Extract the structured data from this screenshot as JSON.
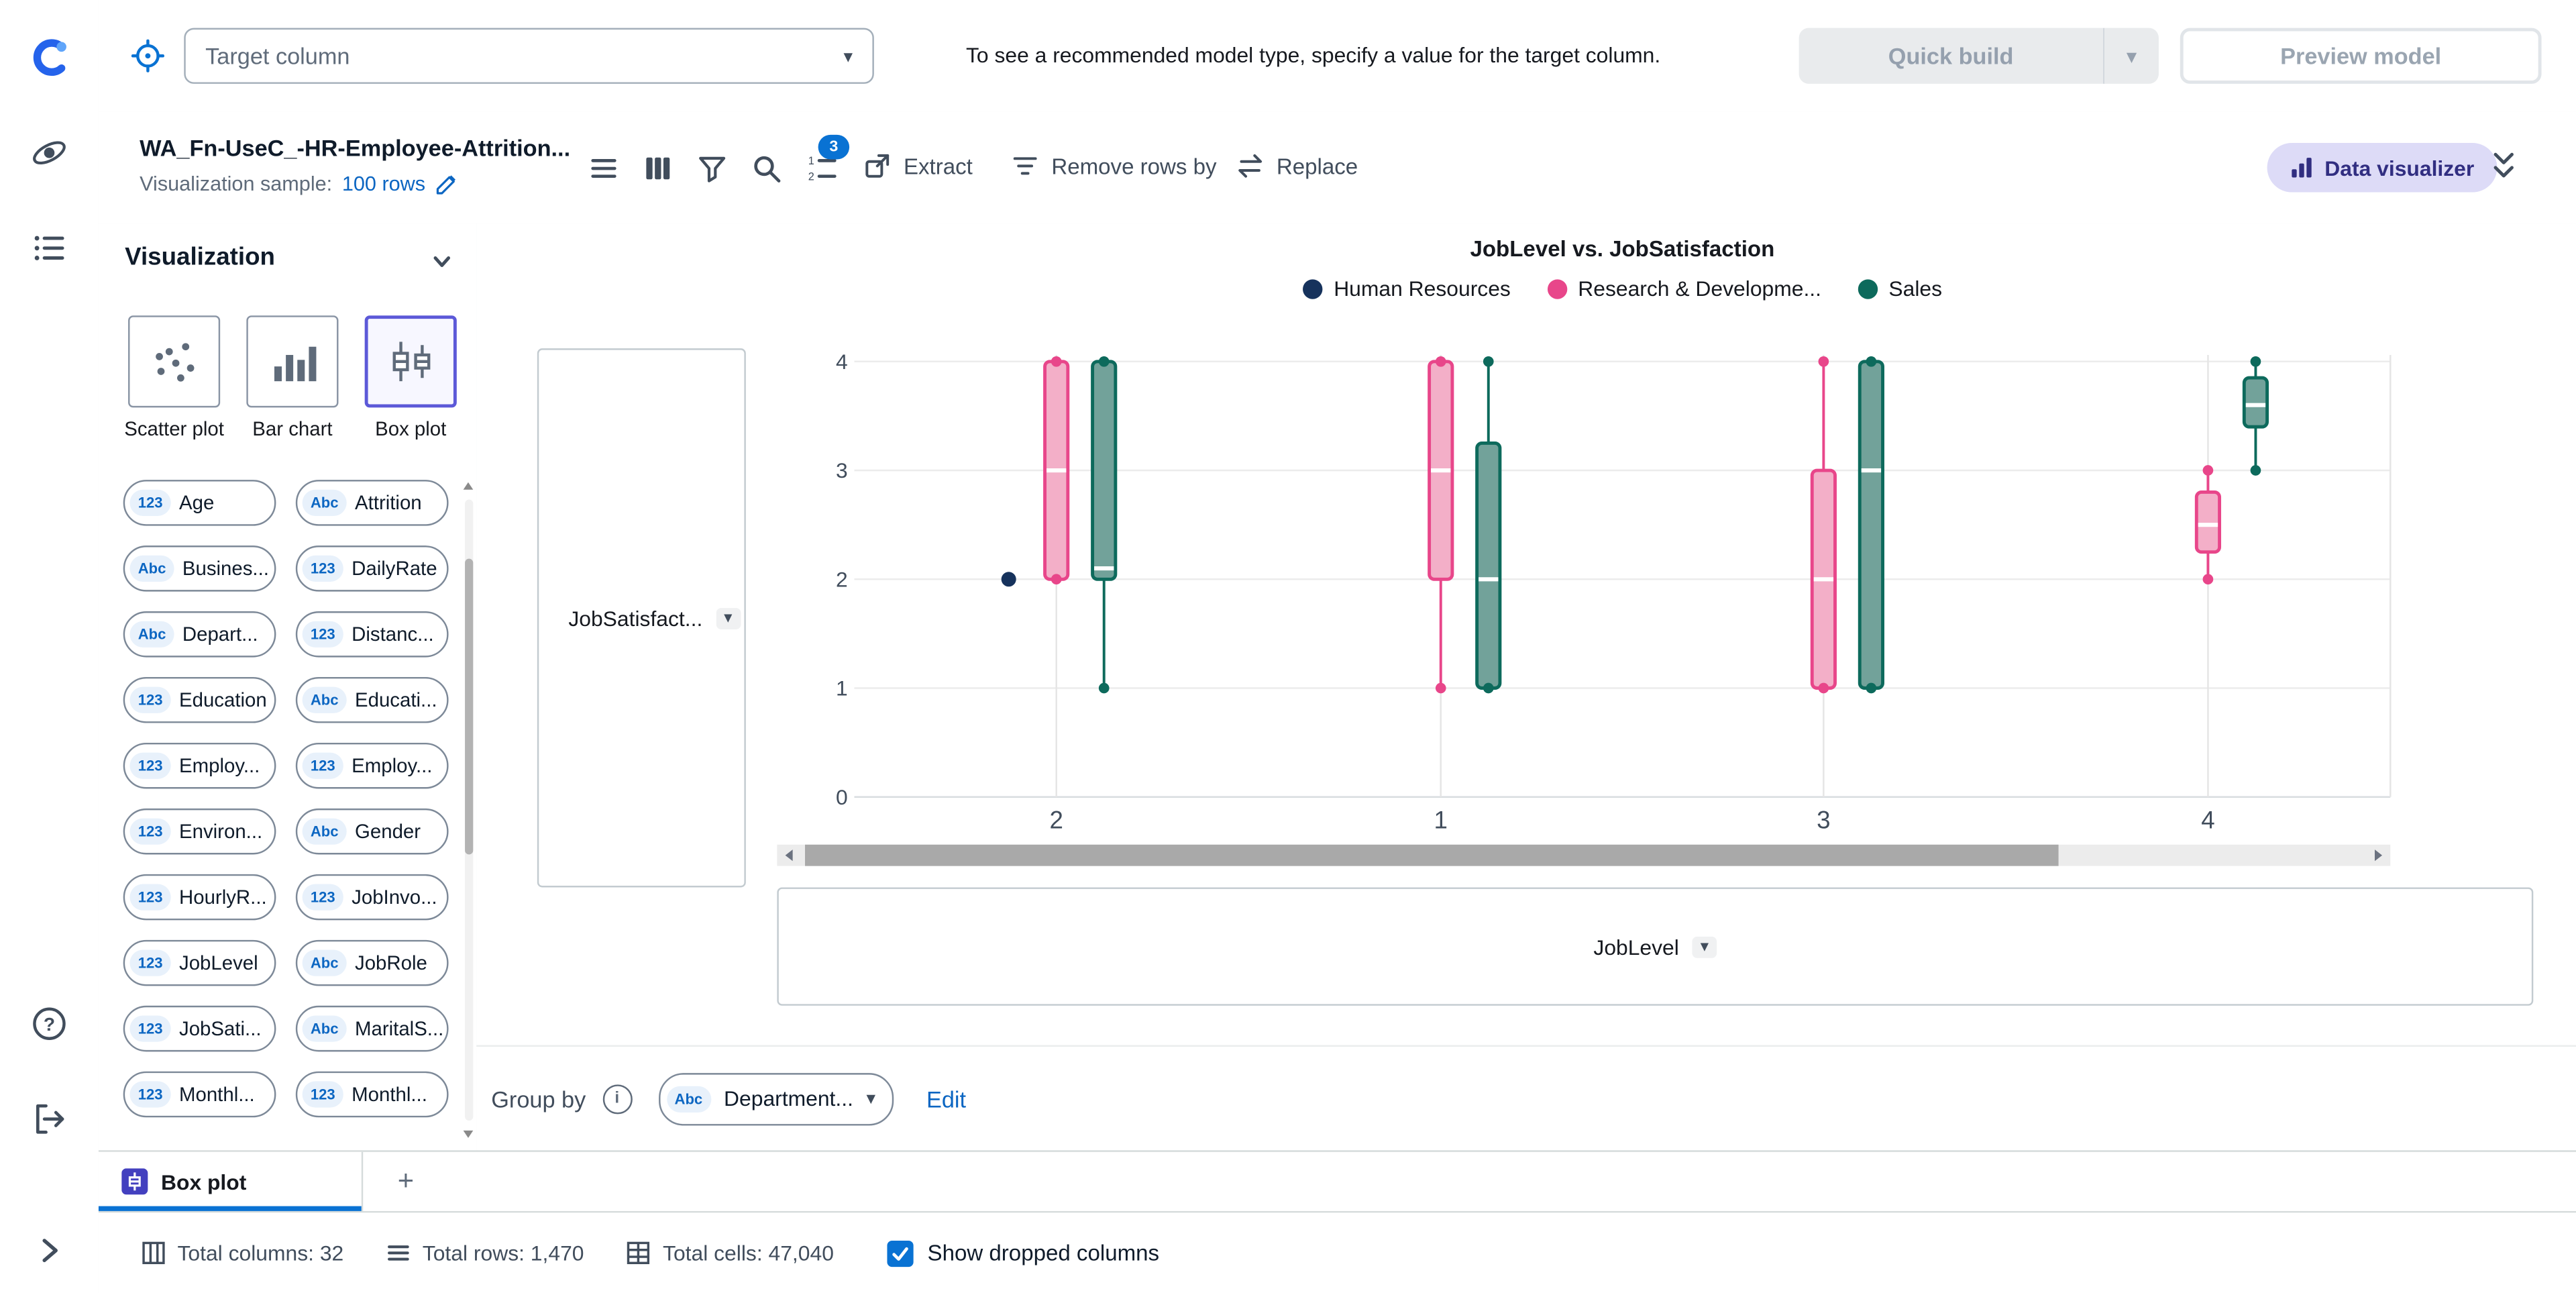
{
  "theme": {
    "accent_blue": "#0972d3",
    "accent_purple": "#5c59d8"
  },
  "top_bar": {
    "target_column": {
      "placeholder": "Target column"
    },
    "hint": "To see a recommended model type, specify a value for the target column.",
    "quick_build": "Quick build",
    "preview_model": "Preview model"
  },
  "header": {
    "title": "WA_Fn-UseC_-HR-Employee-Attrition...",
    "sample_label": "Visualization sample:",
    "sample_value": "100 rows",
    "steps_badge": "3",
    "actions": {
      "extract": "Extract",
      "remove_rows": "Remove rows by",
      "replace": "Replace",
      "data_visualizer": "Data visualizer"
    }
  },
  "sidebar": {
    "title": "Visualization",
    "chart_types": [
      {
        "kind": "scatter",
        "label": "Scatter plot",
        "selected": false
      },
      {
        "kind": "bar",
        "label": "Bar chart",
        "selected": false
      },
      {
        "kind": "box",
        "label": "Box plot",
        "selected": true
      }
    ],
    "columns": [
      {
        "dtype": "123",
        "label": "Age"
      },
      {
        "dtype": "Abc",
        "label": "Attrition"
      },
      {
        "dtype": "Abc",
        "label": "Busines..."
      },
      {
        "dtype": "123",
        "label": "DailyRate"
      },
      {
        "dtype": "Abc",
        "label": "Depart..."
      },
      {
        "dtype": "123",
        "label": "Distanc..."
      },
      {
        "dtype": "123",
        "label": "Education"
      },
      {
        "dtype": "Abc",
        "label": "Educati..."
      },
      {
        "dtype": "123",
        "label": "Employ..."
      },
      {
        "dtype": "123",
        "label": "Employ..."
      },
      {
        "dtype": "123",
        "label": "Environ..."
      },
      {
        "dtype": "Abc",
        "label": "Gender"
      },
      {
        "dtype": "123",
        "label": "HourlyR..."
      },
      {
        "dtype": "123",
        "label": "JobInvo..."
      },
      {
        "dtype": "123",
        "label": "JobLevel"
      },
      {
        "dtype": "Abc",
        "label": "JobRole"
      },
      {
        "dtype": "123",
        "label": "JobSati..."
      },
      {
        "dtype": "Abc",
        "label": "MaritalS..."
      },
      {
        "dtype": "123",
        "label": "Monthl..."
      },
      {
        "dtype": "123",
        "label": "Monthl..."
      }
    ]
  },
  "chart_data": {
    "type": "box",
    "title": "JobLevel vs. JobSatisfaction",
    "x_field": "JobLevel",
    "y_field": "JobSatisfaction",
    "categories": [
      "2",
      "1",
      "3",
      "4"
    ],
    "y_ticks": [
      0,
      1,
      2,
      3,
      4
    ],
    "ylim": [
      0,
      4
    ],
    "legend_position": "top-center",
    "grid": true,
    "legend": [
      {
        "name": "Human Resources",
        "color": "#16325c"
      },
      {
        "name": "Research & Developme...",
        "color": "#e8468a"
      },
      {
        "name": "Sales",
        "color": "#0d6a5c"
      }
    ],
    "series": [
      {
        "name": "Human Resources",
        "color": "#16325c",
        "fill": "#16325c",
        "offset": -29,
        "points": [
          {
            "category": "2",
            "value": 2
          }
        ],
        "boxes": []
      },
      {
        "name": "Research & Developme...",
        "color": "#e8468a",
        "fill": "#f3afc8",
        "offset": 0,
        "points": [],
        "boxes": [
          {
            "category": "2",
            "min": 2,
            "q1": 2,
            "median": 3,
            "q3": 4,
            "max": 4
          },
          {
            "category": "1",
            "min": 1,
            "q1": 2,
            "median": 3,
            "q3": 4,
            "max": 4
          },
          {
            "category": "3",
            "min": 1,
            "q1": 1,
            "median": 2,
            "q3": 3,
            "max": 4
          },
          {
            "category": "4",
            "min": 2,
            "q1": 2.25,
            "median": 2.5,
            "q3": 2.8,
            "max": 3
          }
        ]
      },
      {
        "name": "Sales",
        "color": "#0d6a5c",
        "fill": "#72a29a",
        "offset": 29,
        "points": [],
        "boxes": [
          {
            "category": "2",
            "min": 1,
            "q1": 2,
            "median": 2.1,
            "q3": 4,
            "max": 4
          },
          {
            "category": "1",
            "min": 1,
            "q1": 1,
            "median": 2,
            "q3": 3.25,
            "max": 4
          },
          {
            "category": "3",
            "min": 1,
            "q1": 1,
            "median": 3,
            "q3": 4,
            "max": 4
          },
          {
            "category": "4",
            "min": 3,
            "q1": 3.4,
            "median": 3.6,
            "q3": 3.85,
            "max": 4
          }
        ]
      }
    ]
  },
  "controls": {
    "y_axis_value": "JobSatisfact...",
    "x_axis_value": "JobLevel",
    "group_by_label": "Group by",
    "group_by_dtype": "Abc",
    "group_by_value": "Department...",
    "edit_label": "Edit"
  },
  "tabs": {
    "active": "Box plot",
    "add": "+"
  },
  "status_bar": {
    "items": [
      {
        "label": "Total columns: 32"
      },
      {
        "label": "Total rows: 1,470"
      },
      {
        "label": "Total cells: 47,040"
      }
    ],
    "checkbox_label": "Show dropped columns",
    "checkbox_checked": true
  }
}
